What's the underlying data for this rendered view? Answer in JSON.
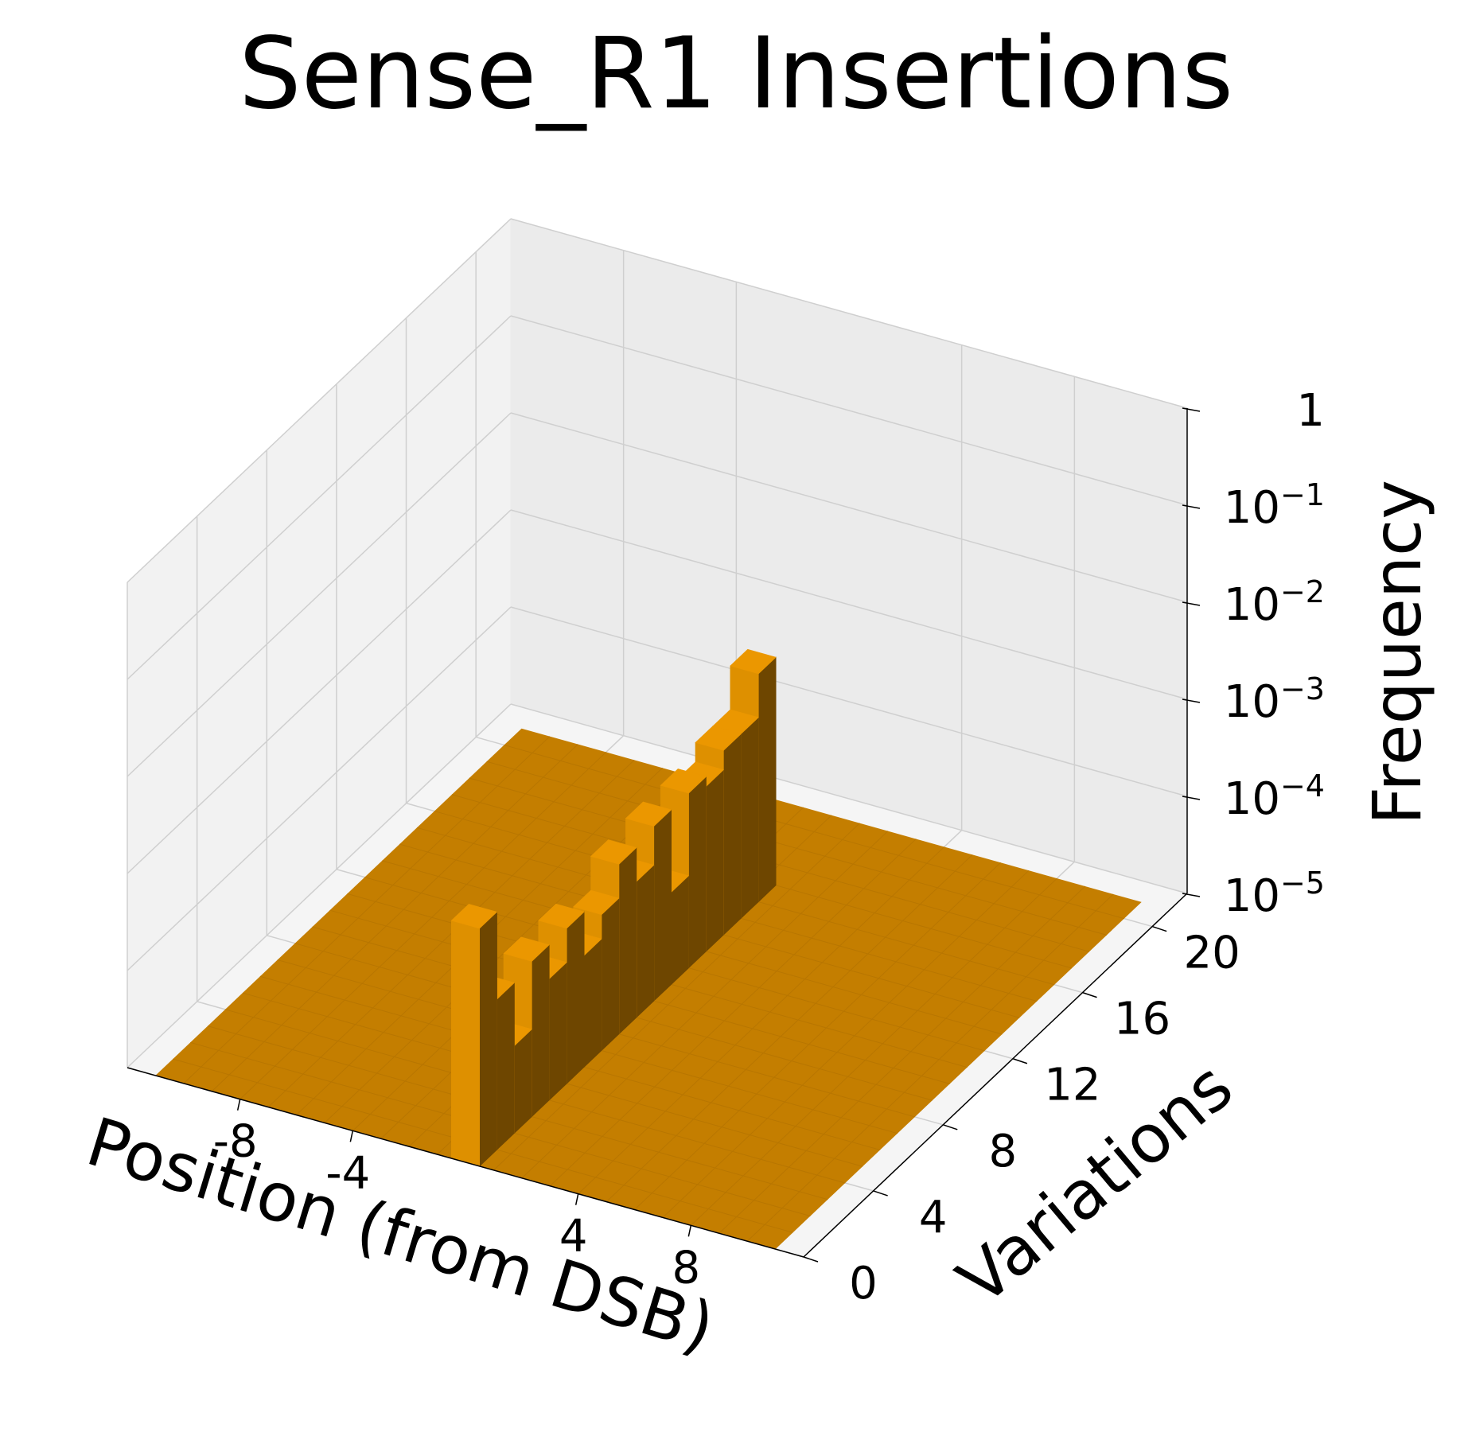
{
  "chart_data": {
    "type": "bar3d",
    "title": "Sense_R1 Insertions",
    "xlabel": "Position (from DSB)",
    "ylabel": "Variations",
    "zlabel": "Frequency",
    "z_scale": "log",
    "xlim": [
      -12,
      12
    ],
    "ylim": [
      0,
      22
    ],
    "zlim_exponent": [
      -5,
      0
    ],
    "x_ticks": [
      "-8",
      "-4",
      "4",
      "8"
    ],
    "x_tick_values": [
      -8,
      -4,
      4,
      8
    ],
    "y_ticks": [
      "0",
      "4",
      "8",
      "12",
      "16",
      "20"
    ],
    "y_tick_values": [
      0,
      4,
      8,
      12,
      16,
      20
    ],
    "z_ticks": [
      {
        "base": "1",
        "exp": ""
      },
      {
        "base": "10",
        "exp": "−1"
      },
      {
        "base": "10",
        "exp": "−2"
      },
      {
        "base": "10",
        "exp": "−3"
      },
      {
        "base": "10",
        "exp": "−4"
      },
      {
        "base": "10",
        "exp": "−5"
      }
    ],
    "z_tick_values": [
      0,
      -1,
      -2,
      -3,
      -4,
      -5
    ],
    "bars": [
      {
        "x": 0,
        "y": 0,
        "log_freq": -2.55
      },
      {
        "x": 0,
        "y": 1,
        "log_freq": -3.45
      },
      {
        "x": 0,
        "y": 2,
        "log_freq": -4.1
      },
      {
        "x": 0,
        "y": 3,
        "log_freq": -3.4
      },
      {
        "x": 0,
        "y": 4,
        "log_freq": -3.75
      },
      {
        "x": 0,
        "y": 5,
        "log_freq": -3.4
      },
      {
        "x": 0,
        "y": 6,
        "log_freq": -3.85
      },
      {
        "x": 0,
        "y": 7,
        "log_freq": -3.6
      },
      {
        "x": 0,
        "y": 8,
        "log_freq": -3.25
      },
      {
        "x": 0,
        "y": 9,
        "log_freq": -3.6
      },
      {
        "x": 0,
        "y": 10,
        "log_freq": -3.2
      },
      {
        "x": 0,
        "y": 11,
        "log_freq": -4.05
      },
      {
        "x": 0,
        "y": 12,
        "log_freq": -3.2
      },
      {
        "x": 0,
        "y": 13,
        "log_freq": -3.3
      },
      {
        "x": 0,
        "y": 14,
        "log_freq": -3.1
      },
      {
        "x": 0,
        "y": 15,
        "log_freq": -3.1
      },
      {
        "x": 0,
        "y": 16,
        "log_freq": -2.65
      }
    ],
    "bar_color": "#e09000",
    "floor_color": "#c47e00"
  }
}
